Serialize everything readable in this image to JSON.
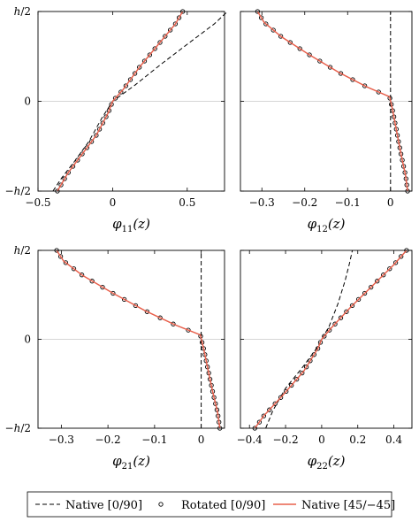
{
  "legend": {
    "items": [
      {
        "label": "Native [0/90]",
        "style": "dash",
        "color": "#000000"
      },
      {
        "label": "Rotated [0/90]",
        "style": "marker",
        "color": "#000000"
      },
      {
        "label": "Native [45/−45]",
        "style": "line",
        "color": "#e8604c"
      }
    ]
  },
  "chart_data": [
    {
      "type": "line",
      "xlabel": "φ11(z)",
      "xlabel_main": "φ",
      "xlabel_sub": "11",
      "xlabel_arg": "(z)",
      "xlim": [
        -0.5,
        0.75
      ],
      "xticks": [
        -0.5,
        0,
        0.5
      ],
      "xtick_labels": [
        "−0.5",
        "0",
        "0.5"
      ],
      "ylim": [
        -1,
        1
      ],
      "yticks": [
        -1,
        0,
        1
      ],
      "ytick_labels": [
        "−h/2",
        "0",
        "h/2"
      ],
      "grid": "horizontal line at 0",
      "series": [
        {
          "name": "Native [0/90]",
          "style": "dash",
          "x": [
            -0.4,
            -0.34,
            -0.26,
            -0.16,
            -0.07,
            0.0,
            0.15,
            0.33,
            0.52,
            0.68,
            0.77
          ],
          "y": [
            -1,
            -0.85,
            -0.68,
            -0.45,
            -0.18,
            0,
            0.18,
            0.42,
            0.66,
            0.86,
            1
          ]
        },
        {
          "name": "Rotated [0/90]",
          "style": "marker",
          "x": [
            -0.37,
            -0.3,
            -0.21,
            -0.11,
            -0.03,
            0.0,
            0.07,
            0.18,
            0.31,
            0.42,
            0.47
          ],
          "y": [
            -1,
            -0.8,
            -0.6,
            -0.38,
            -0.13,
            0,
            0.13,
            0.38,
            0.64,
            0.86,
            1
          ]
        },
        {
          "name": "Native [45/−45]",
          "style": "line",
          "x": [
            -0.37,
            -0.3,
            -0.21,
            -0.11,
            -0.03,
            0.0,
            0.07,
            0.18,
            0.31,
            0.42,
            0.47
          ],
          "y": [
            -1,
            -0.8,
            -0.6,
            -0.38,
            -0.13,
            0,
            0.13,
            0.38,
            0.64,
            0.86,
            1
          ]
        }
      ]
    },
    {
      "type": "line",
      "xlabel": "φ12(z)",
      "xlabel_main": "φ",
      "xlabel_sub": "12",
      "xlabel_arg": "(z)",
      "xlim": [
        -0.35,
        0.05
      ],
      "xticks": [
        -0.3,
        -0.2,
        -0.1,
        0
      ],
      "xtick_labels": [
        "−0.3",
        "−0.2",
        "−0.1",
        "0"
      ],
      "ylim": [
        -1,
        1
      ],
      "yticks": [
        -1,
        0,
        1
      ],
      "ytick_labels": [
        "−h/2",
        "0",
        "h/2"
      ],
      "grid": "horizontal line at 0",
      "series": [
        {
          "name": "Native [0/90]",
          "style": "dash",
          "x": [
            0,
            0
          ],
          "y": [
            -1,
            1
          ]
        },
        {
          "name": "Rotated [0/90]",
          "style": "marker",
          "x": [
            -0.31,
            -0.295,
            -0.255,
            -0.19,
            -0.12,
            -0.055,
            -0.002,
            0.005,
            0.015,
            0.025,
            0.035,
            0.04
          ],
          "y": [
            1,
            0.88,
            0.72,
            0.52,
            0.32,
            0.16,
            0.05,
            -0.1,
            -0.35,
            -0.6,
            -0.82,
            -1
          ]
        },
        {
          "name": "Native [45/−45]",
          "style": "line",
          "x": [
            -0.31,
            -0.295,
            -0.255,
            -0.19,
            -0.12,
            -0.055,
            -0.002,
            0.005,
            0.015,
            0.025,
            0.035,
            0.04
          ],
          "y": [
            1,
            0.88,
            0.72,
            0.52,
            0.32,
            0.16,
            0.05,
            -0.1,
            -0.35,
            -0.6,
            -0.82,
            -1
          ]
        }
      ]
    },
    {
      "type": "line",
      "xlabel": "φ21(z)",
      "xlabel_main": "φ",
      "xlabel_sub": "21",
      "xlabel_arg": "(z)",
      "xlim": [
        -0.35,
        0.05
      ],
      "xticks": [
        -0.3,
        -0.2,
        -0.1,
        0
      ],
      "xtick_labels": [
        "−0.3",
        "−0.2",
        "−0.1",
        "0"
      ],
      "ylim": [
        -1,
        1
      ],
      "yticks": [
        -1,
        0,
        1
      ],
      "ytick_labels": [
        "−h/2",
        "0",
        "h/2"
      ],
      "grid": "horizontal line at 0",
      "series": [
        {
          "name": "Native [0/90]",
          "style": "dash",
          "x": [
            0,
            0
          ],
          "y": [
            -1,
            1
          ]
        },
        {
          "name": "Rotated [0/90]",
          "style": "marker",
          "x": [
            -0.31,
            -0.295,
            -0.255,
            -0.19,
            -0.12,
            -0.055,
            -0.002,
            0.005,
            0.015,
            0.025,
            0.035,
            0.04
          ],
          "y": [
            1,
            0.88,
            0.72,
            0.52,
            0.32,
            0.16,
            0.05,
            -0.1,
            -0.35,
            -0.6,
            -0.82,
            -1
          ]
        },
        {
          "name": "Native [45/−45]",
          "style": "line",
          "x": [
            -0.31,
            -0.295,
            -0.255,
            -0.19,
            -0.12,
            -0.055,
            -0.002,
            0.005,
            0.015,
            0.025,
            0.035,
            0.04
          ],
          "y": [
            1,
            0.88,
            0.72,
            0.52,
            0.32,
            0.16,
            0.05,
            -0.1,
            -0.35,
            -0.6,
            -0.82,
            -1
          ]
        }
      ]
    },
    {
      "type": "line",
      "xlabel": "φ22(z)",
      "xlabel_main": "φ",
      "xlabel_sub": "22",
      "xlabel_arg": "(z)",
      "xlim": [
        -0.45,
        0.5
      ],
      "xticks": [
        -0.4,
        -0.2,
        0,
        0.2,
        0.4
      ],
      "xtick_labels": [
        "−0.4",
        "−0.2",
        "0",
        "0.2",
        "0.4"
      ],
      "ylim": [
        -1,
        1
      ],
      "yticks": [
        -1,
        0,
        1
      ],
      "ytick_labels": [
        "−h/2",
        "0",
        "h/2"
      ],
      "grid": "horizontal line at 0",
      "series": [
        {
          "name": "Native [0/90]",
          "style": "dash",
          "x": [
            -0.31,
            -0.27,
            -0.2,
            -0.1,
            -0.02,
            0.0,
            0.04,
            0.09,
            0.13,
            0.155,
            0.17
          ],
          "y": [
            -1,
            -0.8,
            -0.55,
            -0.3,
            -0.08,
            0,
            0.14,
            0.4,
            0.66,
            0.86,
            1
          ]
        },
        {
          "name": "Rotated [0/90]",
          "style": "marker",
          "x": [
            -0.37,
            -0.32,
            -0.22,
            -0.1,
            -0.02,
            0.0,
            0.05,
            0.16,
            0.29,
            0.4,
            0.47
          ],
          "y": [
            -1,
            -0.86,
            -0.64,
            -0.36,
            -0.1,
            0,
            0.12,
            0.36,
            0.62,
            0.84,
            1
          ]
        },
        {
          "name": "Native [45/−45]",
          "style": "line",
          "x": [
            -0.37,
            -0.32,
            -0.22,
            -0.1,
            -0.02,
            0.0,
            0.05,
            0.16,
            0.29,
            0.4,
            0.47
          ],
          "y": [
            -1,
            -0.86,
            -0.64,
            -0.36,
            -0.1,
            0,
            0.12,
            0.36,
            0.62,
            0.84,
            1
          ]
        }
      ]
    }
  ]
}
